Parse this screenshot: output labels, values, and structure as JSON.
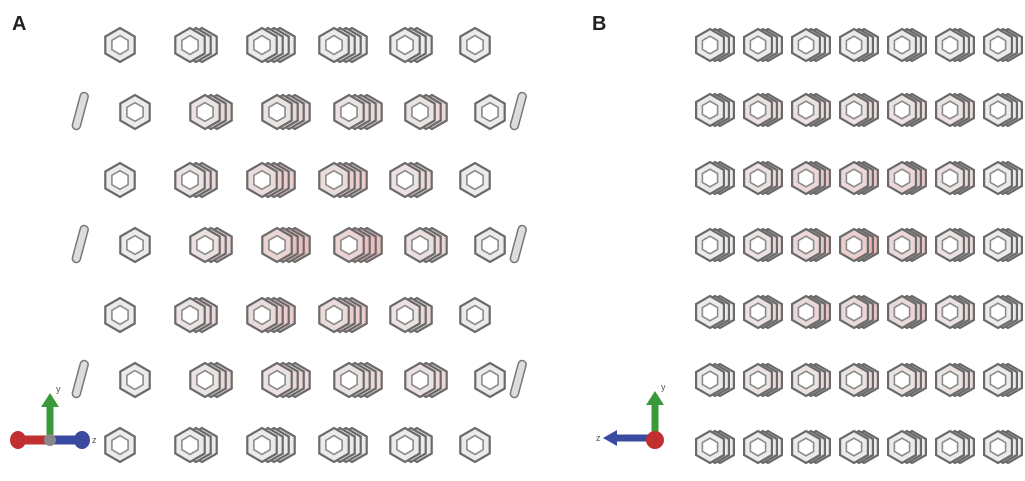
{
  "panels": [
    {
      "label": "A",
      "axis_labels": [
        "y",
        "z"
      ]
    },
    {
      "label": "B",
      "axis_labels": [
        "y",
        "z"
      ]
    }
  ]
}
